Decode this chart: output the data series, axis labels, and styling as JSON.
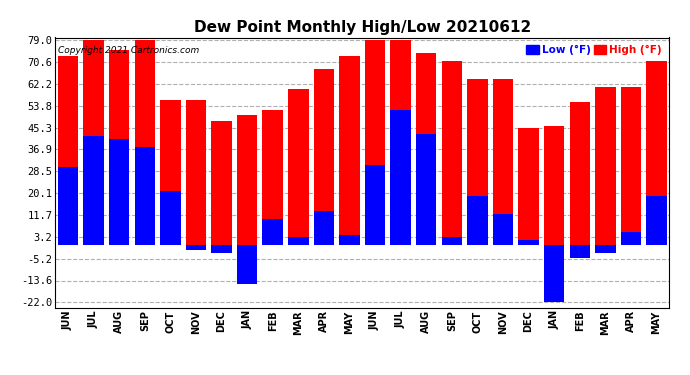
{
  "title": "Dew Point Monthly High/Low 20210612",
  "copyright": "Copyright 2021 Cartronics.com",
  "months": [
    "JUN",
    "JUL",
    "AUG",
    "SEP",
    "OCT",
    "NOV",
    "DEC",
    "JAN",
    "FEB",
    "MAR",
    "APR",
    "MAY",
    "JUN",
    "JUL",
    "AUG",
    "SEP",
    "OCT",
    "NOV",
    "DEC",
    "JAN",
    "FEB",
    "MAR",
    "APR",
    "MAY"
  ],
  "highs": [
    73,
    79,
    75,
    79,
    56,
    56,
    48,
    50,
    52,
    60,
    68,
    73,
    79,
    79,
    74,
    71,
    64,
    64,
    45,
    46,
    55,
    61,
    61,
    71
  ],
  "lows": [
    30,
    42,
    41,
    38,
    21,
    -2,
    -3,
    -15,
    10,
    3,
    13,
    4,
    31,
    52,
    43,
    3,
    19,
    12,
    2,
    -22,
    -5,
    -3,
    5,
    19
  ],
  "high_color": "#ff0000",
  "low_color": "#0000ff",
  "background_color": "#ffffff",
  "grid_color": "#b0b0b0",
  "yticks": [
    -22.0,
    -13.6,
    -5.2,
    3.2,
    11.7,
    20.1,
    28.5,
    36.9,
    45.3,
    53.8,
    62.2,
    70.6,
    79.0
  ],
  "title_fontsize": 11,
  "legend_low_label": "Low (°F)",
  "legend_high_label": "High (°F)",
  "bar_width": 0.8
}
